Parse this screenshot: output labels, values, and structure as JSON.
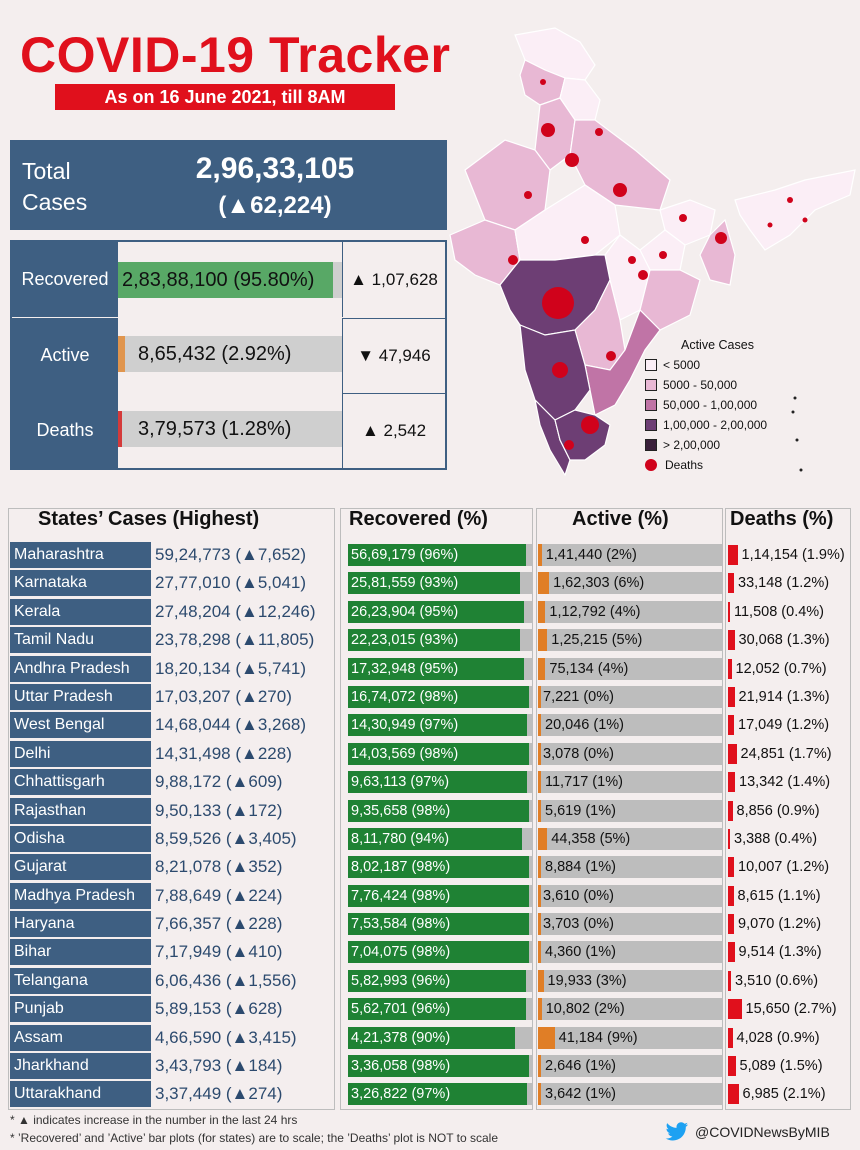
{
  "header": {
    "title": "COVID-19 Tracker",
    "subtitle": "As on 16 June 2021, till 8AM"
  },
  "total": {
    "label": "Total Cases",
    "value": "2,96,33,105",
    "change": "(▲62,224)"
  },
  "summary": [
    {
      "label": "Recovered",
      "text": "2,83,88,100 (95.80%)",
      "percent": 95.8,
      "color": "#58a866",
      "change": "▲ 1,07,628"
    },
    {
      "label": "Active",
      "text": "8,65,432 (2.92%)",
      "percent": 2.92,
      "color": "#e0954e",
      "change": "▼ 47,946"
    },
    {
      "label": "Deaths",
      "text": "3,79,573 (1.28%)",
      "percent": 1.28,
      "color": "#d43a3a",
      "change": "▲ 2,542"
    }
  ],
  "legend": {
    "title": "Active Cases",
    "items": [
      {
        "label": "< 5000",
        "color": "#fbeef6"
      },
      {
        "label": "5000 - 50,000",
        "color": "#e8b8d4"
      },
      {
        "label": "50,000 - 1,00,000",
        "color": "#c074a6"
      },
      {
        "label": "1,00,000 - 2,00,000",
        "color": "#6d3e74"
      },
      {
        "label": "> 2,00,000",
        "color": "#3a1f3a"
      }
    ],
    "deaths_label": "Deaths"
  },
  "table_headers": {
    "states": "States’ Cases (Highest)",
    "recovered": "Recovered (%)",
    "active": "Active (%)",
    "deaths": "Deaths (%)"
  },
  "chart_data": {
    "type": "bar",
    "title": "States’ Cases (Highest)",
    "categories": [
      "Maharashtra",
      "Karnataka",
      "Kerala",
      "Tamil Nadu",
      "Andhra Pradesh",
      "Uttar Pradesh",
      "West Bengal",
      "Delhi",
      "Chhattisgarh",
      "Rajasthan",
      "Odisha",
      "Gujarat",
      "Madhya Pradesh",
      "Haryana",
      "Bihar",
      "Telangana",
      "Punjab",
      "Assam",
      "Jharkhand",
      "Uttarakhand"
    ],
    "rows": [
      {
        "state": "Maharashtra",
        "cases": "59,24,773 (▲7,652)",
        "recovered": "56,69,179 (96%)",
        "rec_pct": 96,
        "active": "1,41,440 (2%)",
        "act_pct": 2,
        "deaths": "1,14,154 (1.9%)",
        "death_pct": 1.9
      },
      {
        "state": "Karnataka",
        "cases": "27,77,010 (▲5,041)",
        "recovered": "25,81,559 (93%)",
        "rec_pct": 93,
        "active": "1,62,303 (6%)",
        "act_pct": 6,
        "deaths": "33,148 (1.2%)",
        "death_pct": 1.2
      },
      {
        "state": "Kerala",
        "cases": "27,48,204 (▲12,246)",
        "recovered": "26,23,904 (95%)",
        "rec_pct": 95,
        "active": "1,12,792 (4%)",
        "act_pct": 4,
        "deaths": "11,508 (0.4%)",
        "death_pct": 0.4
      },
      {
        "state": "Tamil Nadu",
        "cases": "23,78,298 (▲11,805)",
        "recovered": "22,23,015 (93%)",
        "rec_pct": 93,
        "active": "1,25,215 (5%)",
        "act_pct": 5,
        "deaths": "30,068 (1.3%)",
        "death_pct": 1.3
      },
      {
        "state": "Andhra Pradesh",
        "cases": "18,20,134 (▲5,741)",
        "recovered": "17,32,948 (95%)",
        "rec_pct": 95,
        "active": "75,134 (4%)",
        "act_pct": 4,
        "deaths": "12,052 (0.7%)",
        "death_pct": 0.7
      },
      {
        "state": "Uttar Pradesh",
        "cases": "17,03,207 (▲270)",
        "recovered": "16,74,072 (98%)",
        "rec_pct": 98,
        "active": "7,221 (0%)",
        "act_pct": 0,
        "deaths": "21,914 (1.3%)",
        "death_pct": 1.3
      },
      {
        "state": "West Bengal",
        "cases": "14,68,044 (▲3,268)",
        "recovered": "14,30,949 (97%)",
        "rec_pct": 97,
        "active": "20,046 (1%)",
        "act_pct": 1,
        "deaths": "17,049 (1.2%)",
        "death_pct": 1.2
      },
      {
        "state": "Delhi",
        "cases": "14,31,498 (▲228)",
        "recovered": "14,03,569 (98%)",
        "rec_pct": 98,
        "active": "3,078 (0%)",
        "act_pct": 0,
        "deaths": "24,851 (1.7%)",
        "death_pct": 1.7
      },
      {
        "state": "Chhattisgarh",
        "cases": "9,88,172 (▲609)",
        "recovered": "9,63,113 (97%)",
        "rec_pct": 97,
        "active": "11,717 (1%)",
        "act_pct": 1,
        "deaths": "13,342 (1.4%)",
        "death_pct": 1.4
      },
      {
        "state": "Rajasthan",
        "cases": "9,50,133 (▲172)",
        "recovered": "9,35,658 (98%)",
        "rec_pct": 98,
        "active": "5,619 (1%)",
        "act_pct": 1,
        "deaths": "8,856 (0.9%)",
        "death_pct": 0.9
      },
      {
        "state": "Odisha",
        "cases": "8,59,526 (▲3,405)",
        "recovered": "8,11,780 (94%)",
        "rec_pct": 94,
        "active": "44,358 (5%)",
        "act_pct": 5,
        "deaths": "3,388 (0.4%)",
        "death_pct": 0.4
      },
      {
        "state": "Gujarat",
        "cases": "8,21,078 (▲352)",
        "recovered": "8,02,187 (98%)",
        "rec_pct": 98,
        "active": "8,884 (1%)",
        "act_pct": 1,
        "deaths": "10,007 (1.2%)",
        "death_pct": 1.2
      },
      {
        "state": "Madhya Pradesh",
        "cases": "7,88,649 (▲224)",
        "recovered": "7,76,424 (98%)",
        "rec_pct": 98,
        "active": "3,610 (0%)",
        "act_pct": 0,
        "deaths": "8,615 (1.1%)",
        "death_pct": 1.1
      },
      {
        "state": "Haryana",
        "cases": "7,66,357 (▲228)",
        "recovered": "7,53,584 (98%)",
        "rec_pct": 98,
        "active": "3,703 (0%)",
        "act_pct": 0,
        "deaths": "9,070 (1.2%)",
        "death_pct": 1.2
      },
      {
        "state": "Bihar",
        "cases": "7,17,949 (▲410)",
        "recovered": "7,04,075 (98%)",
        "rec_pct": 98,
        "active": "4,360 (1%)",
        "act_pct": 1,
        "deaths": "9,514 (1.3%)",
        "death_pct": 1.3
      },
      {
        "state": "Telangana",
        "cases": "6,06,436 (▲1,556)",
        "recovered": "5,82,993 (96%)",
        "rec_pct": 96,
        "active": "19,933 (3%)",
        "act_pct": 3,
        "deaths": "3,510 (0.6%)",
        "death_pct": 0.6
      },
      {
        "state": "Punjab",
        "cases": "5,89,153 (▲628)",
        "recovered": "5,62,701 (96%)",
        "rec_pct": 96,
        "active": "10,802 (2%)",
        "act_pct": 2,
        "deaths": "15,650 (2.7%)",
        "death_pct": 2.7
      },
      {
        "state": "Assam",
        "cases": "4,66,590 (▲3,415)",
        "recovered": "4,21,378 (90%)",
        "rec_pct": 90,
        "active": "41,184 (9%)",
        "act_pct": 9,
        "deaths": "4,028 (0.9%)",
        "death_pct": 0.9
      },
      {
        "state": "Jharkhand",
        "cases": "3,43,793 (▲184)",
        "recovered": "3,36,058 (98%)",
        "rec_pct": 98,
        "active": "2,646 (1%)",
        "act_pct": 1,
        "deaths": "5,089 (1.5%)",
        "death_pct": 1.5
      },
      {
        "state": "Uttarakhand",
        "cases": "3,37,449 (▲274)",
        "recovered": "3,26,822 (97%)",
        "rec_pct": 97,
        "active": "3,642 (1%)",
        "act_pct": 1,
        "deaths": "6,985 (2.1%)",
        "death_pct": 2.1
      }
    ]
  },
  "footnotes": {
    "note1": "* ▲ indicates increase in the number in the last 24 hrs",
    "note2": "* ’Recovered’ and ’Active’ bar plots (for states) are to scale; the ’Deaths’ plot is NOT to scale"
  },
  "twitter": {
    "handle": "@COVIDNewsByMIB",
    "icon": "twitter-bird-icon"
  }
}
